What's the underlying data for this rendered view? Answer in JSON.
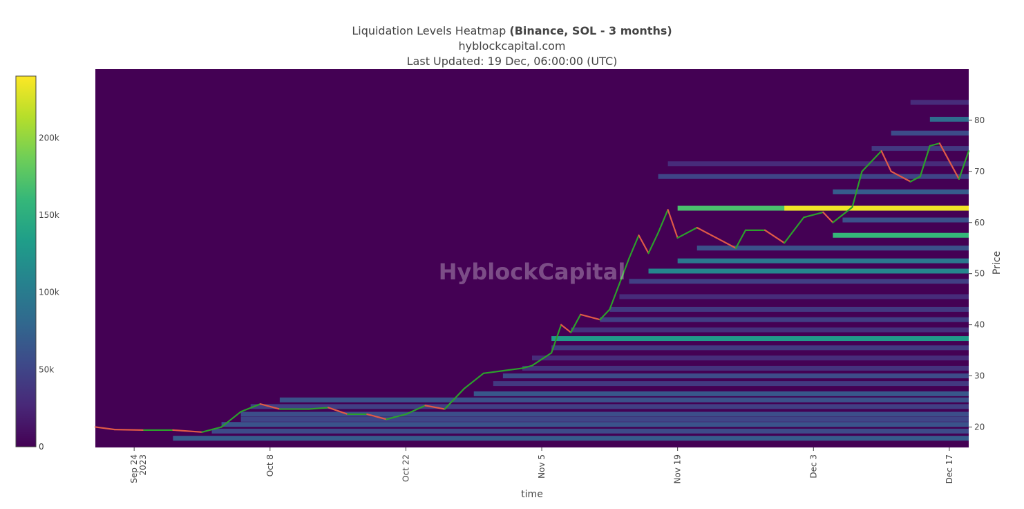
{
  "chart_data": {
    "type": "heatmap",
    "title_main": "Liquidation Levels Heatmap ",
    "title_bold": "(Binance, SOL - 3 months)",
    "subtitle": "hyblockcapital.com",
    "updated": "Last Updated: 19 Dec, 06:00:00 (UTC)",
    "watermark": "HyblockCapital",
    "xlabel": "time",
    "ylabel": "Price",
    "x_range": [
      "2023-09-20",
      "2023-12-19"
    ],
    "y_range": [
      16,
      90
    ],
    "x_ticks": [
      {
        "date": "2023-09-24",
        "label": "Sep 24",
        "label2": "2023"
      },
      {
        "date": "2023-10-08",
        "label": "Oct 8"
      },
      {
        "date": "2023-10-22",
        "label": "Oct 22"
      },
      {
        "date": "2023-11-05",
        "label": "Nov 5"
      },
      {
        "date": "2023-11-19",
        "label": "Nov 19"
      },
      {
        "date": "2023-12-03",
        "label": "Dec 3"
      },
      {
        "date": "2023-12-17",
        "label": "Dec 17"
      }
    ],
    "y_ticks": [
      20,
      30,
      40,
      50,
      60,
      70,
      80
    ],
    "colorbar": {
      "min": 0,
      "max": 240000,
      "ticks": [
        {
          "v": 0,
          "label": "0"
        },
        {
          "v": 50000,
          "label": "50k"
        },
        {
          "v": 100000,
          "label": "100k"
        },
        {
          "v": 150000,
          "label": "150k"
        },
        {
          "v": 200000,
          "label": "200k"
        }
      ],
      "colors": [
        "#440154",
        "#482878",
        "#3e4989",
        "#31688e",
        "#26828e",
        "#1f9e89",
        "#35b779",
        "#6ece58",
        "#b5de2b",
        "#fde725"
      ]
    },
    "price_series": {
      "name": "SOL price",
      "up_color": "#2ca02c",
      "down_color": "#e05a47",
      "points": [
        [
          "2023-09-20",
          20.0
        ],
        [
          "2023-09-22",
          19.5
        ],
        [
          "2023-09-25",
          19.4
        ],
        [
          "2023-09-28",
          19.4
        ],
        [
          "2023-10-01",
          19.0
        ],
        [
          "2023-10-03",
          20.0
        ],
        [
          "2023-10-05",
          23.0
        ],
        [
          "2023-10-07",
          24.5
        ],
        [
          "2023-10-09",
          23.5
        ],
        [
          "2023-10-12",
          23.5
        ],
        [
          "2023-10-14",
          23.8
        ],
        [
          "2023-10-16",
          22.5
        ],
        [
          "2023-10-18",
          22.5
        ],
        [
          "2023-10-20",
          21.5
        ],
        [
          "2023-10-22",
          22.5
        ],
        [
          "2023-10-24",
          24.2
        ],
        [
          "2023-10-26",
          23.5
        ],
        [
          "2023-10-28",
          27.5
        ],
        [
          "2023-10-30",
          30.5
        ],
        [
          "2023-11-01",
          31.0
        ],
        [
          "2023-11-03",
          31.5
        ],
        [
          "2023-11-04",
          32.0
        ],
        [
          "2023-11-06",
          34.5
        ],
        [
          "2023-11-07",
          40.0
        ],
        [
          "2023-11-08",
          38.5
        ],
        [
          "2023-11-09",
          42.0
        ],
        [
          "2023-11-11",
          41.0
        ],
        [
          "2023-11-12",
          43.0
        ],
        [
          "2023-11-13",
          48.0
        ],
        [
          "2023-11-14",
          53.0
        ],
        [
          "2023-11-15",
          57.5
        ],
        [
          "2023-11-16",
          54.0
        ],
        [
          "2023-11-17",
          58.0
        ],
        [
          "2023-11-18",
          62.5
        ],
        [
          "2023-11-19",
          57.0
        ],
        [
          "2023-11-21",
          59.0
        ],
        [
          "2023-11-23",
          57.0
        ],
        [
          "2023-11-25",
          55.0
        ],
        [
          "2023-11-26",
          58.5
        ],
        [
          "2023-11-28",
          58.5
        ],
        [
          "2023-11-30",
          56.0
        ],
        [
          "2023-12-01",
          58.5
        ],
        [
          "2023-12-02",
          61.0
        ],
        [
          "2023-12-04",
          62.0
        ],
        [
          "2023-12-05",
          60.0
        ],
        [
          "2023-12-07",
          63.0
        ],
        [
          "2023-12-08",
          70.0
        ],
        [
          "2023-12-10",
          74.0
        ],
        [
          "2023-12-11",
          70.0
        ],
        [
          "2023-12-13",
          68.0
        ],
        [
          "2023-12-14",
          69.0
        ],
        [
          "2023-12-15",
          75.0
        ],
        [
          "2023-12-16",
          75.5
        ],
        [
          "2023-12-17",
          72.0
        ],
        [
          "2023-12-18",
          68.5
        ],
        [
          "2023-12-19",
          74.0
        ]
      ]
    },
    "bands": [
      {
        "y": 17.8,
        "start": "2023-09-28",
        "value": 70000
      },
      {
        "y": 19.2,
        "start": "2023-10-02",
        "value": 55000
      },
      {
        "y": 20.5,
        "start": "2023-10-03",
        "value": 62000
      },
      {
        "y": 21.5,
        "start": "2023-10-05",
        "value": 50000
      },
      {
        "y": 22.5,
        "start": "2023-10-05",
        "value": 58000
      },
      {
        "y": 24.0,
        "start": "2023-10-06",
        "value": 45000
      },
      {
        "y": 25.3,
        "start": "2023-10-09",
        "value": 60000
      },
      {
        "y": 26.5,
        "start": "2023-10-29",
        "value": 65000
      },
      {
        "y": 28.5,
        "start": "2023-10-31",
        "value": 40000
      },
      {
        "y": 30.0,
        "start": "2023-11-01",
        "value": 55000
      },
      {
        "y": 31.5,
        "start": "2023-11-03",
        "value": 35000
      },
      {
        "y": 33.5,
        "start": "2023-11-04",
        "value": 30000
      },
      {
        "y": 35.5,
        "start": "2023-11-06",
        "value": 40000
      },
      {
        "y": 37.3,
        "start": "2023-11-06",
        "value": 130000
      },
      {
        "y": 39.0,
        "start": "2023-11-08",
        "value": 35000
      },
      {
        "y": 41.0,
        "start": "2023-11-11",
        "value": 45000
      },
      {
        "y": 43.0,
        "start": "2023-11-12",
        "value": 40000
      },
      {
        "y": 45.5,
        "start": "2023-11-13",
        "value": 30000
      },
      {
        "y": 48.5,
        "start": "2023-11-14",
        "value": 45000
      },
      {
        "y": 50.5,
        "start": "2023-11-16",
        "value": 110000
      },
      {
        "y": 52.5,
        "start": "2023-11-19",
        "value": 95000
      },
      {
        "y": 55.0,
        "start": "2023-11-21",
        "value": 60000
      },
      {
        "y": 57.5,
        "start": "2023-12-05",
        "value": 160000
      },
      {
        "y": 62.8,
        "start": "2023-11-19",
        "value": 170000
      },
      {
        "y": 62.8,
        "start": "2023-11-30",
        "value": 235000
      },
      {
        "y": 60.5,
        "start": "2023-12-06",
        "value": 60000
      },
      {
        "y": 66.0,
        "start": "2023-12-05",
        "value": 70000
      },
      {
        "y": 69.0,
        "start": "2023-11-17",
        "value": 50000
      },
      {
        "y": 71.5,
        "start": "2023-11-18",
        "value": 30000
      },
      {
        "y": 74.5,
        "start": "2023-12-09",
        "value": 40000
      },
      {
        "y": 77.5,
        "start": "2023-12-11",
        "value": 55000
      },
      {
        "y": 80.2,
        "start": "2023-12-15",
        "value": 85000
      },
      {
        "y": 83.5,
        "start": "2023-12-13",
        "value": 30000
      }
    ]
  }
}
